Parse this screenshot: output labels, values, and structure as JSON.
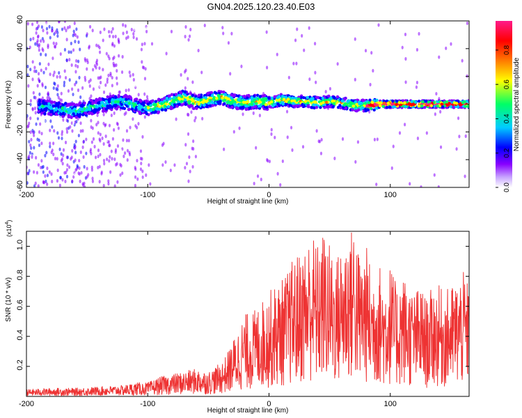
{
  "title": "GN04.2025.120.23.40.E03",
  "colors": {
    "snr_line": "#ee3333",
    "frame": "#000000",
    "colormap": [
      "#ffffff",
      "#8800ff",
      "#0000ff",
      "#00ccff",
      "#00ff66",
      "#ffff00",
      "#ff6600",
      "#ff0000",
      "#ff1a8a"
    ]
  },
  "chart_data": [
    {
      "type": "heatmap",
      "xlabel": "Height of straight line (km)",
      "ylabel": "Frequency (Hz)",
      "xlim": [
        -200,
        165
      ],
      "ylim": [
        -60,
        60
      ],
      "x_ticks": [
        -200,
        -100,
        0,
        100
      ],
      "x_tick_labels": [
        "-200",
        "-100",
        "0",
        "100"
      ],
      "y_ticks": [
        -60,
        -40,
        -20,
        0,
        20,
        40,
        60
      ],
      "y_tick_labels": [
        "-60",
        "-40",
        "-20",
        "0",
        "20",
        "40",
        "60"
      ],
      "colorbar": {
        "label": "Normalized spectral amplitude",
        "range": [
          0,
          0.97
        ],
        "ticks": [
          0,
          0.2,
          0.4,
          0.6,
          0.8
        ],
        "tick_labels": [
          "0.0",
          "0.2",
          "0.4",
          "0.6",
          "0.8"
        ]
      },
      "ridge_center_hz": [
        [
          -200,
          0
        ],
        [
          -180,
          -3
        ],
        [
          -170,
          -4
        ],
        [
          -160,
          -5
        ],
        [
          -150,
          -3
        ],
        [
          -140,
          -1
        ],
        [
          -130,
          1
        ],
        [
          -120,
          2
        ],
        [
          -110,
          -1
        ],
        [
          -100,
          -3
        ],
        [
          -90,
          -1
        ],
        [
          -80,
          2
        ],
        [
          -70,
          5
        ],
        [
          -60,
          1
        ],
        [
          -50,
          3
        ],
        [
          -40,
          5
        ],
        [
          -30,
          2
        ],
        [
          -20,
          1
        ],
        [
          -10,
          2
        ],
        [
          0,
          1
        ],
        [
          10,
          3
        ],
        [
          20,
          2
        ],
        [
          30,
          2
        ],
        [
          40,
          1
        ],
        [
          50,
          2
        ],
        [
          60,
          1
        ],
        [
          70,
          -1
        ],
        [
          80,
          -1
        ],
        [
          90,
          0
        ],
        [
          100,
          0
        ],
        [
          120,
          0
        ],
        [
          140,
          0
        ],
        [
          165,
          0
        ]
      ]
    },
    {
      "type": "line",
      "xlabel": "Height of straight line (km)",
      "ylabel": "SNR (10 * v/v)",
      "y_multiplier_label": "(x10",
      "y_multiplier_exp": "4",
      "y_multiplier_close": ")",
      "xlim": [
        -200,
        165
      ],
      "ylim": [
        0,
        1.1
      ],
      "x_ticks": [
        -200,
        -100,
        0,
        100
      ],
      "x_tick_labels": [
        "-200",
        "-100",
        "0",
        "100"
      ],
      "y_ticks": [
        0.2,
        0.4,
        0.6,
        0.8,
        1.0
      ],
      "y_tick_labels": [
        "0.2",
        "0.4",
        "0.6",
        "0.8",
        "1.0"
      ],
      "series": [
        {
          "x": [
            -200,
            -180,
            -160,
            -140,
            -120,
            -110,
            -100,
            -90,
            -80,
            -70,
            -60,
            -50,
            -40,
            -35,
            -30,
            -25,
            -20,
            -15,
            -10,
            -5,
            0,
            5,
            10,
            15,
            20,
            25,
            30,
            35,
            40,
            45,
            50,
            55,
            60,
            65,
            70,
            75,
            80,
            85,
            90,
            95,
            100,
            105,
            110,
            115,
            120,
            125,
            130,
            135,
            140,
            145,
            150,
            155,
            160,
            165
          ],
          "y": [
            0.025,
            0.03,
            0.03,
            0.035,
            0.04,
            0.05,
            0.05,
            0.07,
            0.08,
            0.09,
            0.1,
            0.09,
            0.12,
            0.15,
            0.2,
            0.25,
            0.3,
            0.3,
            0.32,
            0.35,
            0.38,
            0.4,
            0.42,
            0.45,
            0.5,
            0.52,
            0.55,
            0.6,
            0.55,
            0.6,
            0.55,
            0.5,
            0.55,
            0.6,
            0.65,
            0.5,
            0.55,
            0.45,
            0.5,
            0.42,
            0.48,
            0.4,
            0.45,
            0.4,
            0.38,
            0.4,
            0.35,
            0.4,
            0.4,
            0.38,
            0.4,
            0.42,
            0.45,
            0.4
          ]
        }
      ]
    }
  ]
}
